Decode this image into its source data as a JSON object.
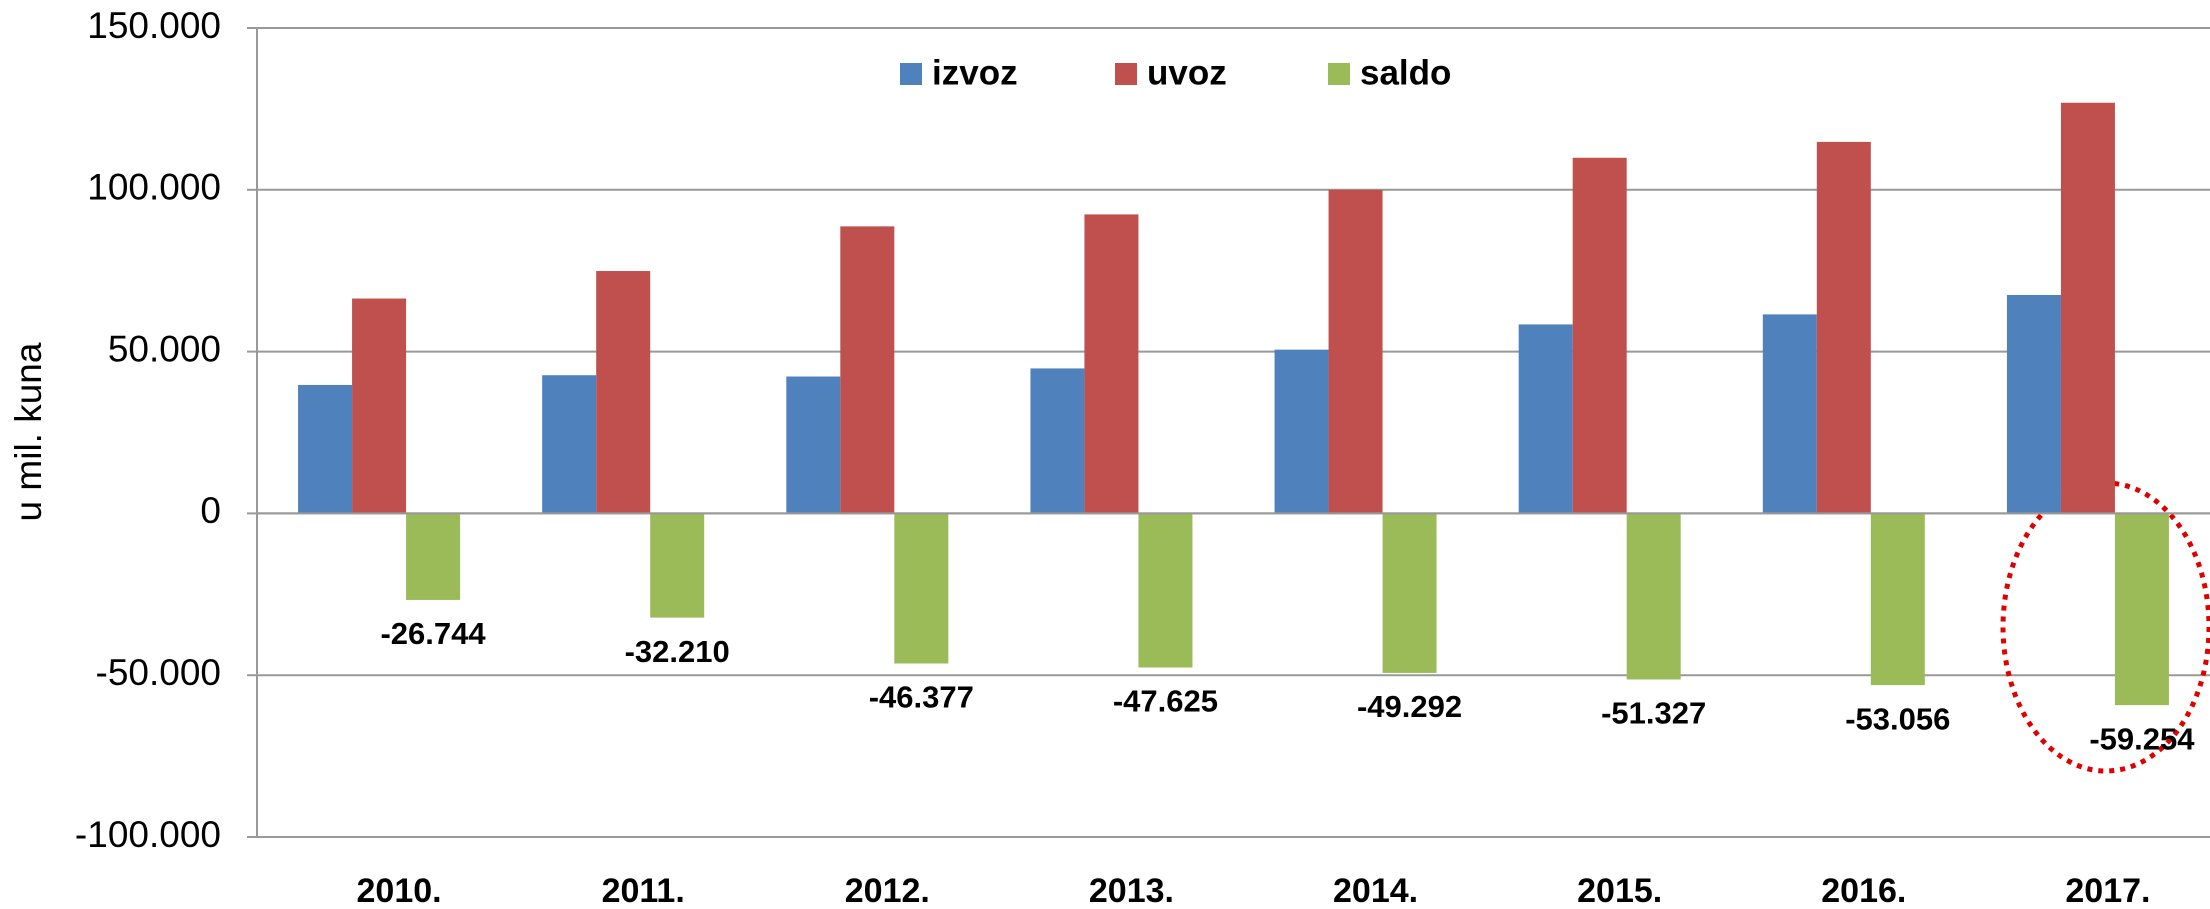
{
  "chart_data": {
    "type": "bar",
    "y_axis_label": "u mil. kuna",
    "categories": [
      "2010.",
      "2011.",
      "2012.",
      "2013.",
      "2014.",
      "2015.",
      "2016.",
      "2017."
    ],
    "series": [
      {
        "name": "izvoz",
        "color": "#4f81bd",
        "values": [
          39700,
          42700,
          42300,
          44800,
          50600,
          58400,
          61500,
          67500
        ]
      },
      {
        "name": "uvoz",
        "color": "#c0504d",
        "values": [
          66400,
          74900,
          88700,
          92400,
          100000,
          109900,
          114800,
          126900
        ]
      },
      {
        "name": "saldo",
        "color": "#9bbb59",
        "values": [
          -26744,
          -32210,
          -46377,
          -47625,
          -49292,
          -51327,
          -53056,
          -59254
        ],
        "value_labels": [
          "-26.744",
          "-32.210",
          "-46.377",
          "-47.625",
          "-49.292",
          "-51.327",
          "-53.056",
          "-59.254"
        ]
      }
    ],
    "ylim": [
      -100000,
      150000
    ],
    "yticks": [
      {
        "value": 150000,
        "label": "150.000"
      },
      {
        "value": 100000,
        "label": "100.000"
      },
      {
        "value": 50000,
        "label": "50.000"
      },
      0,
      {
        "value": -50000,
        "label": "-50.000"
      },
      {
        "value": -100000,
        "label": "-100.000"
      }
    ],
    "grid": true,
    "legend": "top"
  }
}
